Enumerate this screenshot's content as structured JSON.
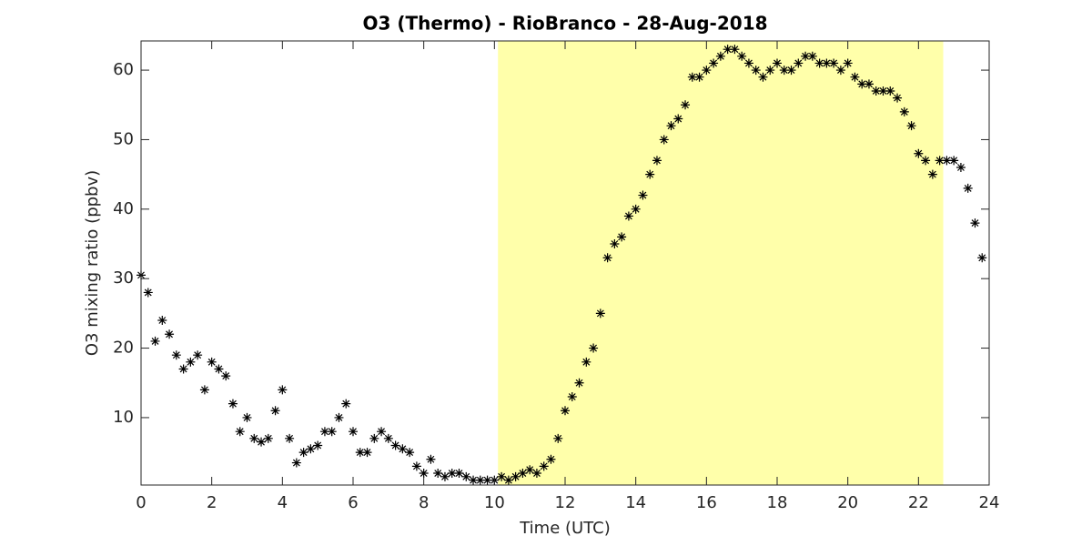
{
  "chart_data": {
    "type": "scatter",
    "title": "O3 (Thermo) - RioBranco - 28-Aug-2018",
    "xlabel": "Time (UTC)",
    "ylabel": "O3 mixing ratio (ppbv)",
    "marker_color": "#000000",
    "shaded_region": [
      10.1,
      22.7
    ],
    "shaded_color": "#ffffaa",
    "xlim": [
      0,
      24
    ],
    "xticks": [
      0,
      2,
      4,
      6,
      8,
      10,
      12,
      14,
      16,
      18,
      20,
      22,
      24
    ],
    "ylim": [
      0.3,
      64.2
    ],
    "yticks": [
      10,
      20,
      30,
      40,
      50,
      60
    ],
    "x": [
      0,
      0.2,
      0.4,
      0.6,
      0.8,
      1.0,
      1.2,
      1.4,
      1.6,
      1.8,
      2.0,
      2.2,
      2.4,
      2.6,
      2.8,
      3.0,
      3.2,
      3.4,
      3.6,
      3.8,
      4.0,
      4.2,
      4.4,
      4.6,
      4.8,
      5.0,
      5.2,
      5.4,
      5.6,
      5.8,
      6.0,
      6.2,
      6.4,
      6.6,
      6.8,
      7.0,
      7.2,
      7.4,
      7.6,
      7.8,
      8.0,
      8.2,
      8.4,
      8.6,
      8.8,
      9.0,
      9.2,
      9.4,
      9.6,
      9.8,
      10.0,
      10.2,
      10.4,
      10.6,
      10.8,
      11.0,
      11.2,
      11.4,
      11.6,
      11.8,
      12.0,
      12.2,
      12.4,
      12.6,
      12.8,
      13.0,
      13.2,
      13.4,
      13.6,
      13.8,
      14.0,
      14.2,
      14.4,
      14.6,
      14.8,
      15.0,
      15.2,
      15.4,
      15.6,
      15.8,
      16.0,
      16.2,
      16.4,
      16.6,
      16.8,
      17.0,
      17.2,
      17.4,
      17.6,
      17.8,
      18.0,
      18.2,
      18.4,
      18.6,
      18.8,
      19.0,
      19.2,
      19.4,
      19.6,
      19.8,
      20.0,
      20.2,
      20.4,
      20.6,
      20.8,
      21.0,
      21.2,
      21.4,
      21.6,
      21.8,
      22.0,
      22.2,
      22.4,
      22.6,
      22.8,
      23.0,
      23.2,
      23.4,
      23.6,
      23.8
    ],
    "values": [
      30.5,
      28,
      21,
      24,
      22,
      19,
      17,
      18,
      19,
      14,
      18,
      17,
      16,
      12,
      8,
      10,
      7,
      6.5,
      7,
      11,
      14,
      7,
      3.5,
      5,
      5.5,
      6,
      8,
      8,
      10,
      12,
      8,
      5,
      5,
      7,
      8,
      7,
      6,
      5.5,
      5,
      3,
      2,
      4,
      2,
      1.5,
      2,
      2,
      1.5,
      1,
      1,
      1,
      1,
      1.5,
      1,
      1.5,
      2,
      2.5,
      2,
      3,
      4,
      7,
      11,
      13,
      15,
      18,
      20,
      25,
      33,
      35,
      36,
      39,
      40,
      42,
      45,
      47,
      50,
      52,
      53,
      55,
      59,
      59,
      60,
      61,
      62,
      63,
      63,
      62,
      61,
      60,
      59,
      60,
      61,
      60,
      60,
      61,
      62,
      62,
      61,
      61,
      61,
      60,
      61,
      59,
      58,
      58,
      57,
      57,
      57,
      56,
      54,
      52,
      48,
      47,
      45,
      47,
      47,
      47,
      46,
      43,
      38,
      33
    ]
  }
}
